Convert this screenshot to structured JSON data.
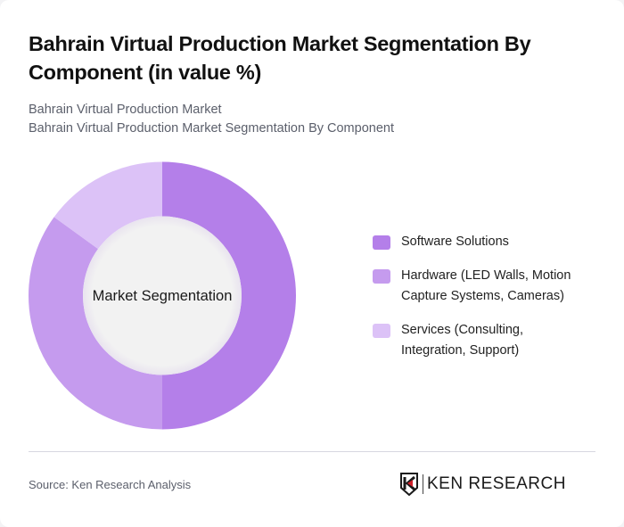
{
  "header": {
    "title": "Bahrain Virtual Production Market Segmentation By Component (in value %)",
    "subtitle_line1": "Bahrain Virtual Production Market",
    "subtitle_line2": "Bahrain Virtual Production Market Segmentation By Component"
  },
  "chart_data": {
    "type": "pie",
    "subtype": "donut",
    "title": "Bahrain Virtual Production Market Segmentation By Component (in value %)",
    "center_label": "Market Segmentation",
    "categories": [
      "Software Solutions",
      "Hardware (LED Walls, Motion Capture Systems, Cameras)",
      "Services (Consulting, Integration, Support)"
    ],
    "values": [
      50,
      35,
      15
    ],
    "colors": [
      "#b47fe9",
      "#c59bee",
      "#dcc2f7"
    ],
    "legend_position": "right",
    "unit": "%"
  },
  "legend": {
    "items": [
      {
        "label": "Software Solutions",
        "color": "#b47fe9"
      },
      {
        "label": "Hardware (LED Walls, Motion Capture Systems, Cameras)",
        "color": "#c59bee"
      },
      {
        "label": "Services (Consulting, Integration, Support)",
        "color": "#dcc2f7"
      }
    ]
  },
  "footer": {
    "source": "Source: Ken Research Analysis",
    "logo_text": "KEN RESEARCH"
  }
}
